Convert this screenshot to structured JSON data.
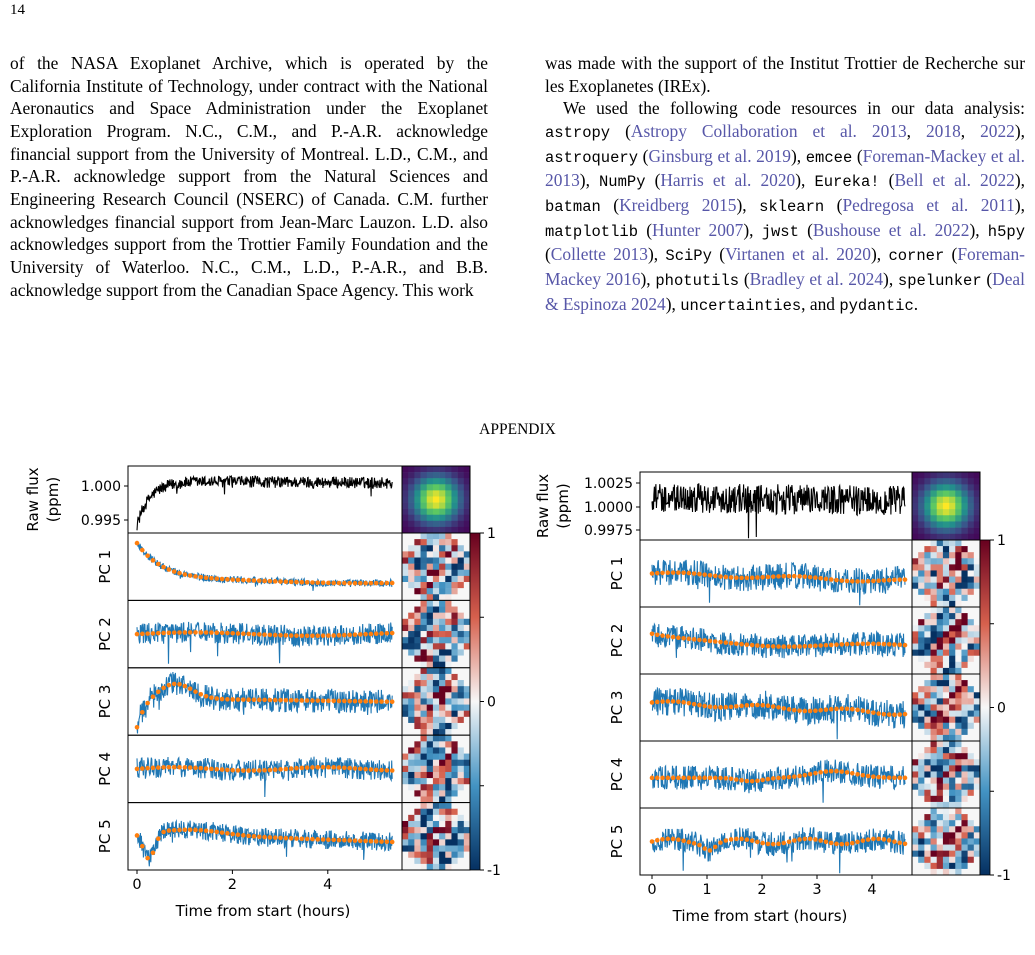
{
  "header": {
    "page_number": "14"
  },
  "left_column": {
    "paragraph": "of the NASA Exoplanet Archive, which is operated by the California Institute of Technology, under contract with the National Aeronautics and Space Administration under the Exoplanet Exploration Program. N.C., C.M., and P.-A.R. acknowledge financial support from the University of Montreal. L.D., C.M., and P.-A.R. acknowledge support from the Natural Sciences and Engineering Research Council (NSERC) of Canada. C.M. further acknowledges financial support from Jean-Marc Lauzon. L.D. also acknowledges support from the Trottier Family Foundation and the University of Waterloo. N.C., C.M., L.D., P.-A.R., and B.B. acknowledge support from the Canadian Space Agency. This work"
  },
  "right_column": {
    "paragraph_1": "was made with the support of the Institut Trottier de Recherche sur les Exoplanetes (IREx).",
    "paragraph_2": [
      "We used the following code resources in our data analysis: ",
      {
        "text": "astropy",
        "style": "code"
      },
      " (",
      {
        "text": "Astropy Collaboration et al. 2013",
        "style": "cite"
      },
      ", ",
      {
        "text": "2018",
        "style": "cite"
      },
      ", ",
      {
        "text": "2022",
        "style": "cite"
      },
      "), ",
      {
        "text": "astroquery",
        "style": "code"
      },
      " (",
      {
        "text": "Ginsburg et al. 2019",
        "style": "cite"
      },
      "), ",
      {
        "text": "emcee",
        "style": "code"
      },
      " (",
      {
        "text": "Foreman-Mackey et al. 2013",
        "style": "cite"
      },
      "), ",
      {
        "text": "NumPy",
        "style": "code"
      },
      " (",
      {
        "text": "Harris et al. 2020",
        "style": "cite"
      },
      "), ",
      {
        "text": "Eureka!",
        "style": "code"
      },
      " (",
      {
        "text": "Bell et al. 2022",
        "style": "cite"
      },
      "), ",
      {
        "text": "batman",
        "style": "code"
      },
      " (",
      {
        "text": "Kreidberg 2015",
        "style": "cite"
      },
      "), ",
      {
        "text": "sklearn",
        "style": "code"
      },
      " (",
      {
        "text": "Pedregosa et al. 2011",
        "style": "cite"
      },
      "), ",
      {
        "text": "matplotlib",
        "style": "code"
      },
      " (",
      {
        "text": "Hunter 2007",
        "style": "cite"
      },
      "), ",
      {
        "text": "jwst",
        "style": "code"
      },
      " (",
      {
        "text": "Bushouse et al. 2022",
        "style": "cite"
      },
      "), ",
      {
        "text": "h5py",
        "style": "code"
      },
      " (",
      {
        "text": "Collette 2013",
        "style": "cite"
      },
      "), ",
      {
        "text": "SciPy",
        "style": "code"
      },
      " (",
      {
        "text": "Virtanen et al. 2020",
        "style": "cite"
      },
      "), ",
      {
        "text": "corner",
        "style": "code"
      },
      " (",
      {
        "text": "Foreman-Mackey 2016",
        "style": "cite"
      },
      "), ",
      {
        "text": "photutils",
        "style": "code"
      },
      " (",
      {
        "text": "Bradley et al. 2024",
        "style": "cite"
      },
      "), ",
      {
        "text": "spelunker",
        "style": "code"
      },
      " (",
      {
        "text": "Deal & Espinoza 2024",
        "style": "cite"
      },
      "), ",
      {
        "text": "uncertainties",
        "style": "code"
      },
      ", and ",
      {
        "text": "pydantic",
        "style": "code"
      },
      "."
    ]
  },
  "appendix_heading": "APPENDIX",
  "figure": {
    "panels": [
      {
        "raw_ylabel": [
          "Raw flux",
          "(ppm)"
        ],
        "raw_yticks": [
          "1.000",
          "0.995"
        ],
        "pc_labels": [
          "PC 1",
          "PC 2",
          "PC 3",
          "PC 4",
          "PC 5"
        ],
        "xticks": [
          "0",
          "2",
          "4"
        ],
        "xlabel": "Time from start (hours)",
        "colorbar_ticks": [
          "1",
          "0",
          "-1"
        ]
      },
      {
        "raw_ylabel": [
          "Raw flux",
          "(ppm)"
        ],
        "raw_yticks": [
          "1.0025",
          "1.0000",
          "0.9975"
        ],
        "pc_labels": [
          "PC 1",
          "PC 2",
          "PC 3",
          "PC 4",
          "PC 5"
        ],
        "xticks": [
          "0",
          "1",
          "2",
          "3",
          "4"
        ],
        "xlabel": "Time from start (hours)",
        "colorbar_ticks": [
          "1",
          "0",
          "-1"
        ]
      }
    ]
  }
}
